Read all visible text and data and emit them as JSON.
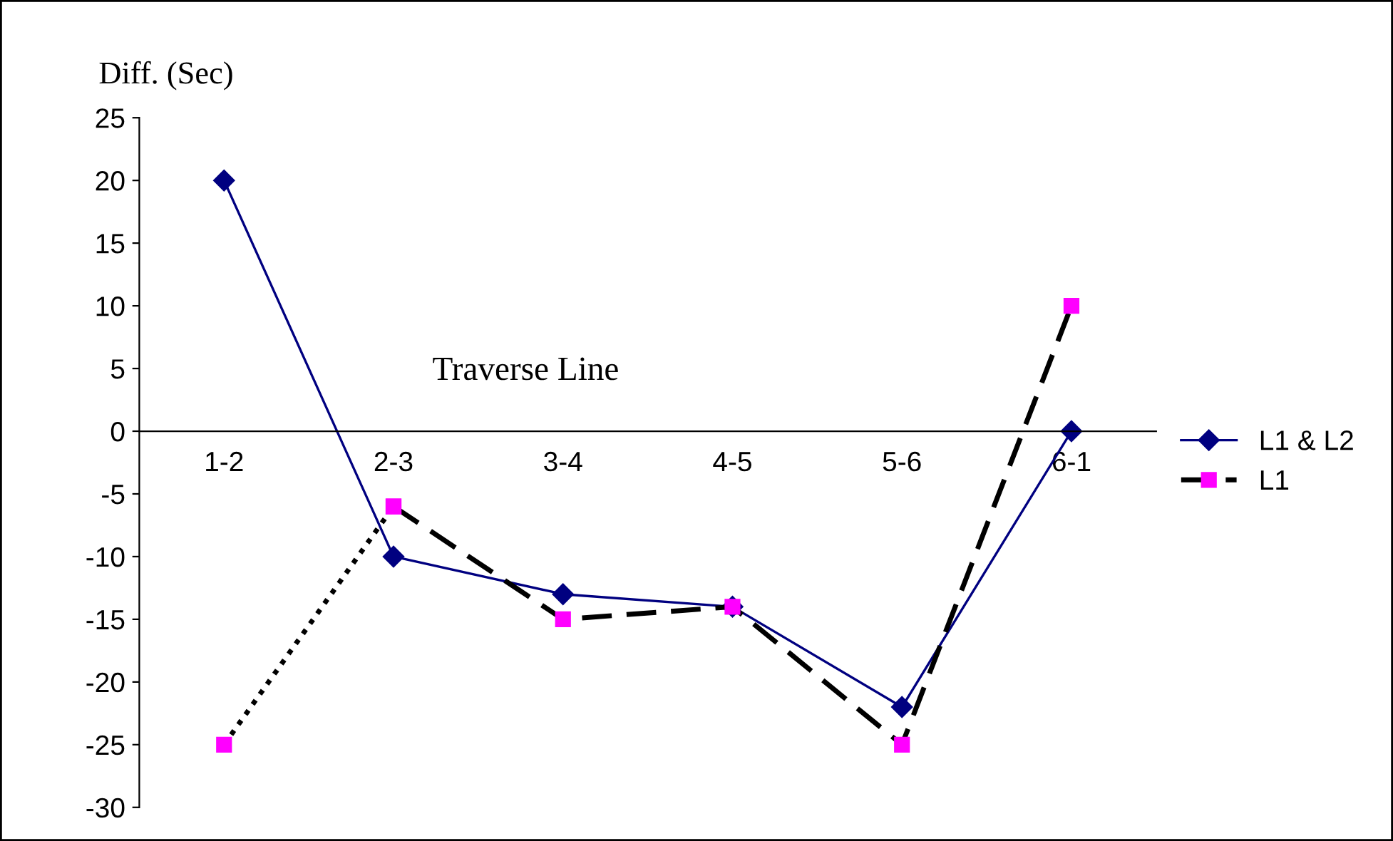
{
  "chart_data": {
    "type": "line",
    "ylabel": "Diff. (Sec)",
    "categories": [
      "1-2",
      "2-3",
      "3-4",
      "4-5",
      "5-6",
      "6-1"
    ],
    "series": [
      {
        "name": "L1 & L2",
        "color": "#000080",
        "values": [
          20,
          -10,
          -13,
          -14,
          -22,
          0
        ],
        "marker": "diamond",
        "line_style": "solid"
      },
      {
        "name": "L1",
        "color": "#ff00ff",
        "values": [
          null,
          -6,
          -15,
          -14,
          -25,
          10
        ],
        "marker": "square",
        "line_style": "dashed"
      },
      {
        "color": "#ff00ff",
        "values": [
          -25,
          -6,
          null,
          null,
          null,
          null
        ],
        "marker": "square",
        "line_style": "dotted"
      }
    ],
    "ylim": [
      -30,
      25
    ],
    "yticks": [
      -30,
      -25,
      -20,
      -15,
      -10,
      -5,
      0,
      5,
      10,
      15,
      20,
      25
    ],
    "annotations": [
      "Traverse Line"
    ],
    "grid": false,
    "legend": "right"
  }
}
